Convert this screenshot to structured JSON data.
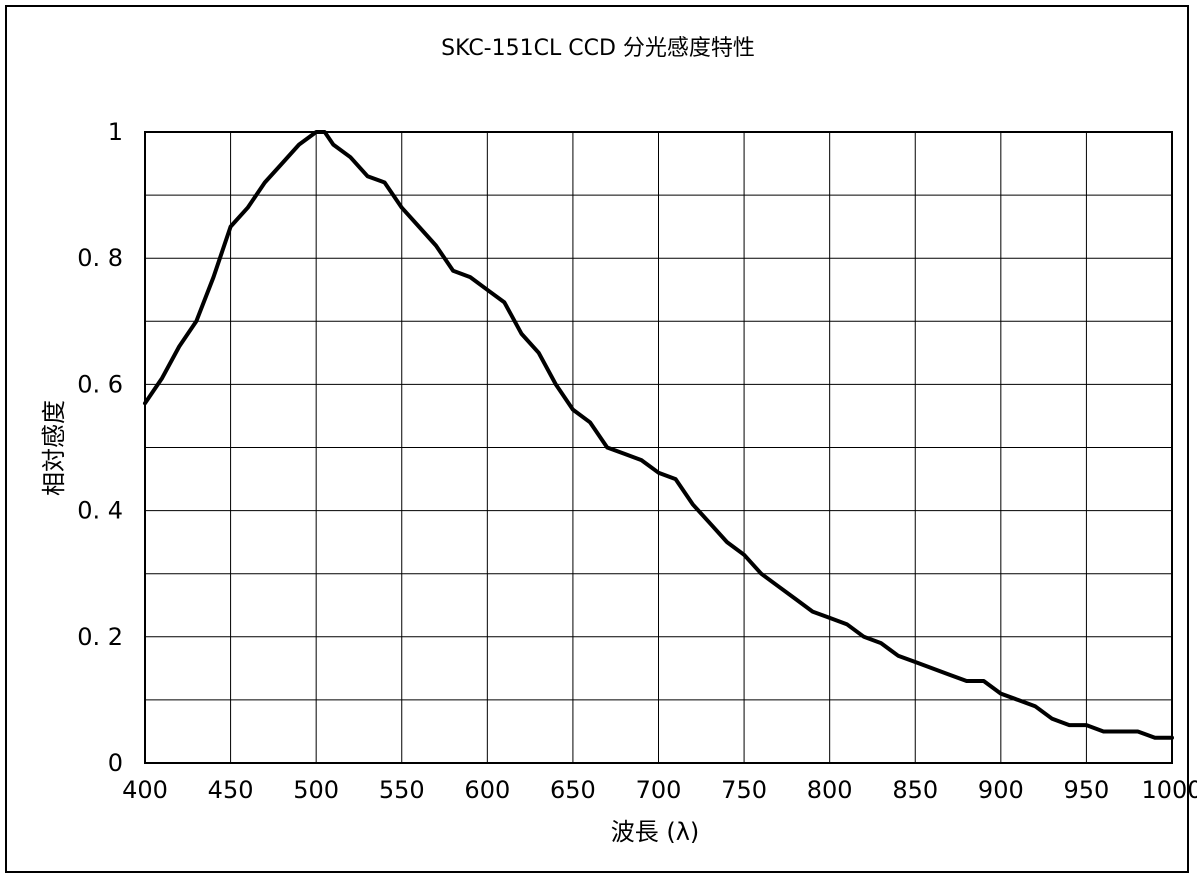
{
  "chart_data": {
    "type": "line",
    "title": "SKC-151CL CCD 分光感度特性",
    "xlabel": "波長 (λ)",
    "ylabel": "相対感度",
    "xlim": [
      400,
      1000
    ],
    "ylim": [
      0,
      1
    ],
    "x_ticks": [
      400,
      450,
      500,
      550,
      600,
      650,
      700,
      750,
      800,
      850,
      900,
      950,
      1000
    ],
    "x_tick_labels": [
      "400",
      "450",
      "500",
      "550",
      "600",
      "650",
      "700",
      "750",
      "800",
      "850",
      "900",
      "950",
      "1000"
    ],
    "y_ticks": [
      0,
      0.2,
      0.4,
      0.6,
      0.8,
      1
    ],
    "y_tick_labels": [
      "0",
      "0. 2",
      "0. 4",
      "0. 6",
      "0. 8",
      "1"
    ],
    "grid": true,
    "legend": "none",
    "line_color": "#000000",
    "series": [
      {
        "x": [
          400,
          410,
          420,
          430,
          440,
          450,
          460,
          470,
          480,
          490,
          500,
          505,
          510,
          520,
          530,
          540,
          550,
          560,
          570,
          580,
          590,
          600,
          610,
          620,
          630,
          640,
          650,
          660,
          670,
          680,
          690,
          700,
          710,
          720,
          730,
          740,
          750,
          760,
          770,
          780,
          790,
          800,
          810,
          820,
          830,
          840,
          850,
          860,
          870,
          880,
          890,
          900,
          910,
          920,
          930,
          940,
          950,
          960,
          970,
          980,
          990,
          1000
        ],
        "y": [
          0.57,
          0.61,
          0.66,
          0.7,
          0.77,
          0.85,
          0.88,
          0.92,
          0.95,
          0.98,
          1.0,
          1.0,
          0.98,
          0.96,
          0.93,
          0.92,
          0.88,
          0.85,
          0.82,
          0.78,
          0.77,
          0.75,
          0.73,
          0.68,
          0.65,
          0.6,
          0.56,
          0.54,
          0.5,
          0.49,
          0.48,
          0.46,
          0.45,
          0.41,
          0.38,
          0.35,
          0.33,
          0.3,
          0.28,
          0.26,
          0.24,
          0.23,
          0.22,
          0.2,
          0.19,
          0.17,
          0.16,
          0.15,
          0.14,
          0.13,
          0.13,
          0.11,
          0.1,
          0.09,
          0.07,
          0.06,
          0.06,
          0.05,
          0.05,
          0.05,
          0.04,
          0.04
        ]
      }
    ]
  }
}
